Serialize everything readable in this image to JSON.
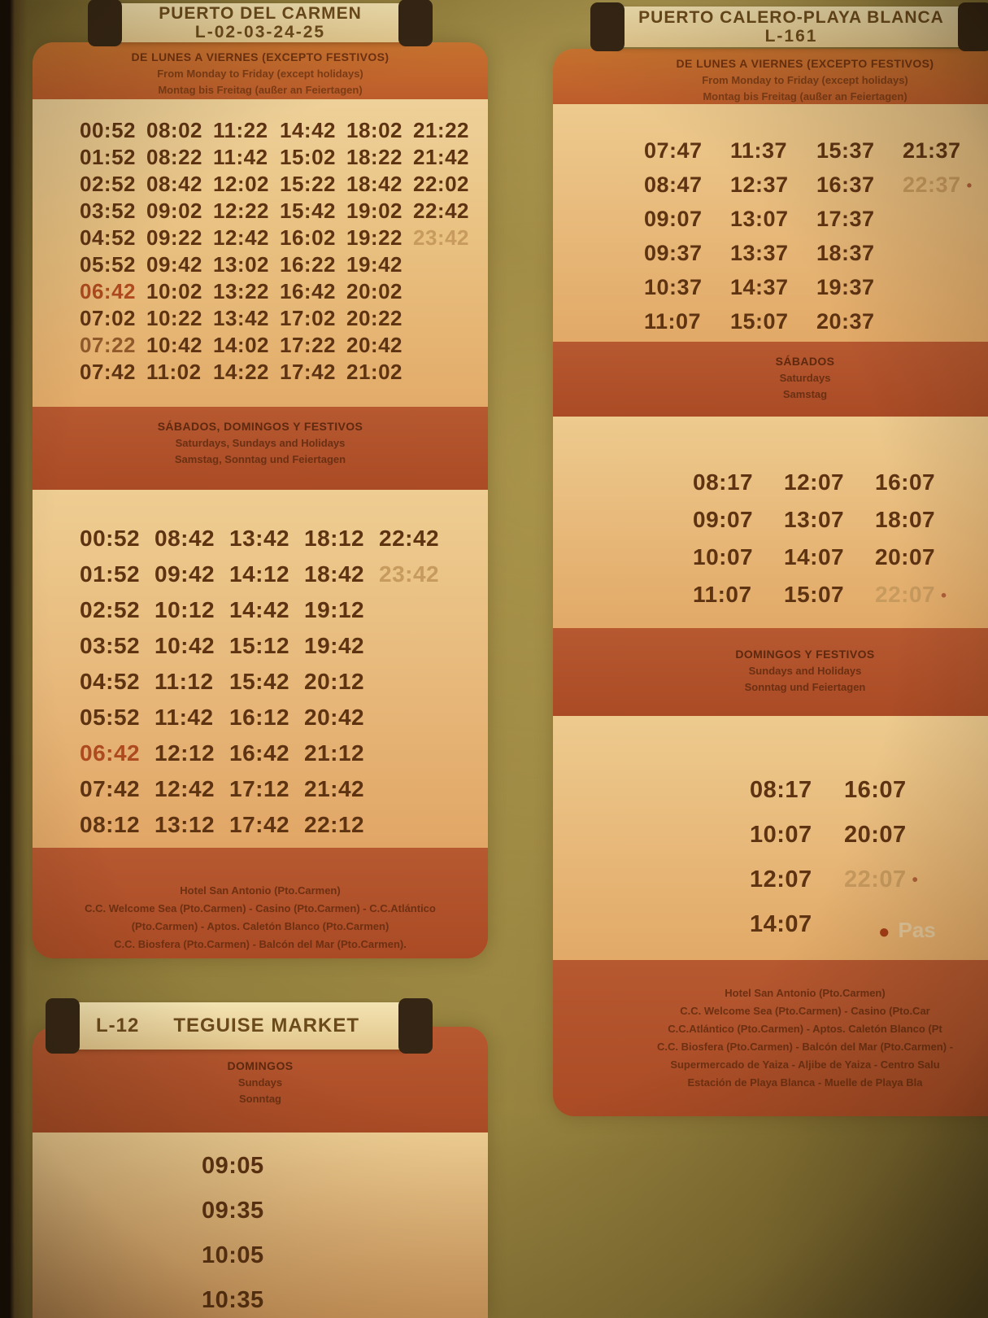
{
  "page": {
    "cell_dot": "•",
    "legend_dot": "●",
    "legend_note": "Pas"
  },
  "carmen": {
    "title": "PUERTO DEL CARMEN",
    "code": "L-02-03-24-25",
    "weekday_header": {
      "es": "DE LUNES A VIERNES (EXCEPTO FESTIVOS)",
      "en": "From Monday to Friday (except holidays)",
      "de": "Montag bis Freitag (außer an Feiertagen)"
    },
    "weekday_times": [
      [
        "00:52",
        "08:02",
        "11:22",
        "14:42",
        "18:02",
        "21:22"
      ],
      [
        "01:52",
        "08:22",
        "11:42",
        "15:02",
        "18:22",
        "21:42"
      ],
      [
        "02:52",
        "08:42",
        "12:02",
        "15:22",
        "18:42",
        "22:02"
      ],
      [
        "03:52",
        "09:02",
        "12:22",
        "15:42",
        "19:02",
        "22:42"
      ],
      [
        "04:52",
        "09:22",
        "12:42",
        "16:02",
        "19:22",
        {
          "v": "23:42",
          "c": "faded"
        }
      ],
      [
        "05:52",
        "09:42",
        "13:02",
        "16:22",
        "19:42"
      ],
      [
        {
          "v": "06:42",
          "c": "red"
        },
        "10:02",
        "13:22",
        "16:42",
        "20:02"
      ],
      [
        "07:02",
        "10:22",
        "13:42",
        "17:02",
        "20:22"
      ],
      [
        {
          "v": "07:22",
          "c": "soft"
        },
        "10:42",
        "14:02",
        "17:22",
        "20:42"
      ],
      [
        "07:42",
        "11:02",
        "14:22",
        "17:42",
        "21:02"
      ]
    ],
    "weekend_header": {
      "es": "SÁBADOS, DOMINGOS Y FESTIVOS",
      "en": "Saturdays, Sundays and Holidays",
      "de": "Samstag, Sonntag und Feiertagen"
    },
    "weekend_times": [
      [
        "00:52",
        "08:42",
        "13:42",
        "18:12",
        "22:42"
      ],
      [
        "01:52",
        "09:42",
        "14:12",
        "18:42",
        {
          "v": "23:42",
          "c": "faded"
        }
      ],
      [
        "02:52",
        "10:12",
        "14:42",
        "19:12"
      ],
      [
        "03:52",
        "10:42",
        "15:12",
        "19:42"
      ],
      [
        "04:52",
        "11:12",
        "15:42",
        "20:12"
      ],
      [
        "05:52",
        "11:42",
        "16:12",
        "20:42"
      ],
      [
        {
          "v": "06:42",
          "c": "red"
        },
        "12:12",
        "16:42",
        "21:12"
      ],
      [
        "07:42",
        "12:42",
        "17:12",
        "21:42"
      ],
      [
        "08:12",
        "13:12",
        "17:42",
        "22:12"
      ]
    ],
    "stops": [
      "Hotel San Antonio (Pto.Carmen)",
      "C.C. Welcome Sea (Pto.Carmen) - Casino (Pto.Carmen) - C.C.Atlántico",
      "(Pto.Carmen) - Aptos. Caletón Blanco (Pto.Carmen)",
      "C.C. Biosfera (Pto.Carmen) - Balcón del Mar (Pto.Carmen)."
    ]
  },
  "teguise": {
    "code": "L-12",
    "title": "TEGUISE MARKET",
    "sunday_header": {
      "es": "DOMINGOS",
      "en": "Sundays",
      "de": "Sonntag"
    },
    "times": [
      [
        "09:05"
      ],
      [
        "09:35"
      ],
      [
        "10:05"
      ],
      [
        "10:35"
      ]
    ]
  },
  "calero": {
    "title": "PUERTO CALERO-PLAYA BLANCA",
    "code": "L-161",
    "weekday_header": {
      "es": "DE LUNES A VIERNES (EXCEPTO FESTIVOS)",
      "en": "From Monday to Friday (except holidays)",
      "de": "Montag bis Freitag (außer an Feiertagen)"
    },
    "weekday_times": [
      [
        "07:47",
        "11:37",
        "15:37",
        "21:37"
      ],
      [
        "08:47",
        "12:37",
        "16:37",
        {
          "v": "22:37",
          "c": "faded",
          "dot": true
        }
      ],
      [
        "09:07",
        "13:07",
        "17:37"
      ],
      [
        "09:37",
        "13:37",
        "18:37"
      ],
      [
        "10:37",
        "14:37",
        "19:37"
      ],
      [
        "11:07",
        "15:07",
        "20:37"
      ]
    ],
    "saturday_header": {
      "es": "SÁBADOS",
      "en": "Saturdays",
      "de": "Samstag"
    },
    "saturday_times": [
      [
        "08:17",
        "12:07",
        "16:07"
      ],
      [
        "09:07",
        "13:07",
        "18:07"
      ],
      [
        "10:07",
        "14:07",
        "20:07"
      ],
      [
        "11:07",
        "15:07",
        {
          "v": "22:07",
          "c": "faded",
          "dot": true
        }
      ]
    ],
    "sunday_header": {
      "es": "DOMINGOS Y FESTIVOS",
      "en": "Sundays and Holidays",
      "de": "Sonntag und Feiertagen"
    },
    "sunday_times": [
      [
        "08:17",
        "16:07"
      ],
      [
        "10:07",
        "20:07"
      ],
      [
        "12:07",
        {
          "v": "22:07",
          "c": "faded",
          "dot": true
        }
      ],
      [
        "14:07"
      ]
    ],
    "stops": [
      "Hotel San Antonio (Pto.Carmen)",
      "C.C. Welcome Sea (Pto.Carmen) - Casino (Pto.Car",
      "C.C.Atlántico (Pto.Carmen) - Aptos. Caletón Blanco (Pt",
      "C.C. Biosfera (Pto.Carmen) - Balcón del Mar (Pto.Carmen) -",
      "Supermercado de Yaiza - Aljibe de Yaiza - Centro Salu",
      "Estación de Playa Blanca - Muelle de Playa Bla"
    ]
  }
}
